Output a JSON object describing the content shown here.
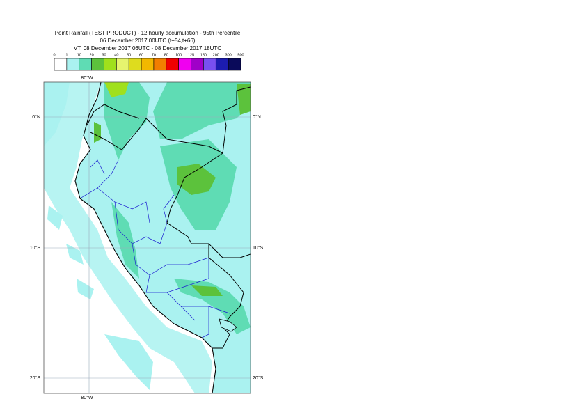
{
  "header": {
    "title": "Point Rainfall (TEST PRODUCT) - 12 hourly accumulation - 95th Percentile",
    "base_time": "06 December 2017 00UTC (t+54,t+66)",
    "valid_time": "VT: 08 December 2017 06UTC - 08 December 2017 18UTC"
  },
  "legend": {
    "labels": [
      "0",
      "1",
      "10",
      "20",
      "30",
      "40",
      "50",
      "60",
      "70",
      "80",
      "100",
      "125",
      "150",
      "200",
      "300",
      "500"
    ],
    "colors": [
      "#ffffff",
      "#aaf2f0",
      "#5fdcb4",
      "#5cc23c",
      "#a0e01c",
      "#e6f46e",
      "#dedc1e",
      "#f2b800",
      "#f27e00",
      "#f00000",
      "#f000f0",
      "#a000c8",
      "#7850f0",
      "#1c1cb0",
      "#0a0a5a"
    ]
  },
  "map": {
    "lon_labels": {
      "top": "80°W",
      "bottom": "80°W"
    },
    "lat_labels": {
      "left": [
        "0°N",
        "10°S",
        "20°S"
      ],
      "right": [
        "0°N",
        "10°S",
        "20°S"
      ]
    }
  }
}
